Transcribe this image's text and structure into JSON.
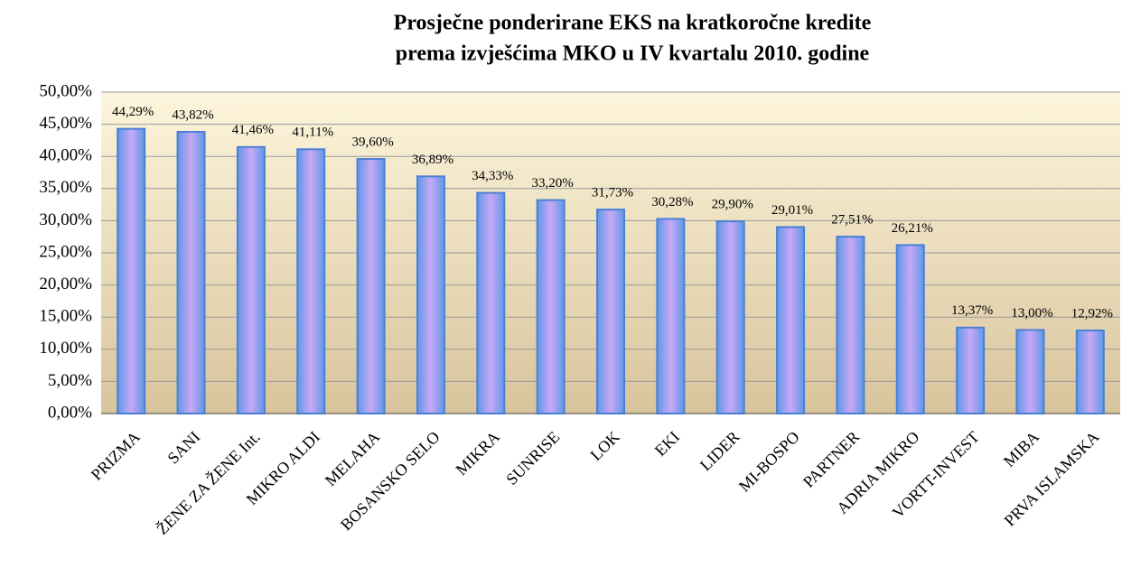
{
  "chart_data": {
    "type": "bar",
    "title": [
      "Prosječne ponderirane EKS na kratkoročne kredite",
      "prema izvješćima MKO u IV kvartalu 2010. godine"
    ],
    "categories": [
      "PRIZMA",
      "SANI",
      "ŽENE ZA ŽENE Int.",
      "MIKRO ALDI",
      "MELAHA",
      "BOSANSKO SELO",
      "MIKRA",
      "SUNRISE",
      "LOK",
      "EKI",
      "LIDER",
      "MI-BOSPO",
      "PARTNER",
      "ADRIA MIKRO",
      "VORTT-INVEST",
      "MIBA",
      "PRVA ISLAMSKA"
    ],
    "values": [
      44.29,
      43.82,
      41.46,
      41.11,
      39.6,
      36.89,
      34.33,
      33.2,
      31.73,
      30.28,
      29.9,
      29.01,
      27.51,
      26.21,
      13.37,
      13.0,
      12.92
    ],
    "value_labels": [
      "44,29%",
      "43,82%",
      "41,46%",
      "41,11%",
      "39,60%",
      "36,89%",
      "34,33%",
      "33,20%",
      "31,73%",
      "30,28%",
      "29,90%",
      "29,01%",
      "27,51%",
      "26,21%",
      "13,37%",
      "13,00%",
      "12,92%"
    ],
    "ylim": [
      0,
      50
    ],
    "yticks": [
      {
        "value": 0,
        "label": "0,00%"
      },
      {
        "value": 5,
        "label": "5,00%"
      },
      {
        "value": 10,
        "label": "10,00%"
      },
      {
        "value": 15,
        "label": "15,00%"
      },
      {
        "value": 20,
        "label": "20,00%"
      },
      {
        "value": 25,
        "label": "25,00%"
      },
      {
        "value": 30,
        "label": "30,00%"
      },
      {
        "value": 35,
        "label": "35,00%"
      },
      {
        "value": 40,
        "label": "40,00%"
      },
      {
        "value": 45,
        "label": "45,00%"
      },
      {
        "value": 50,
        "label": "50,00%"
      }
    ],
    "grid": true,
    "color": "#7fb4f5"
  }
}
